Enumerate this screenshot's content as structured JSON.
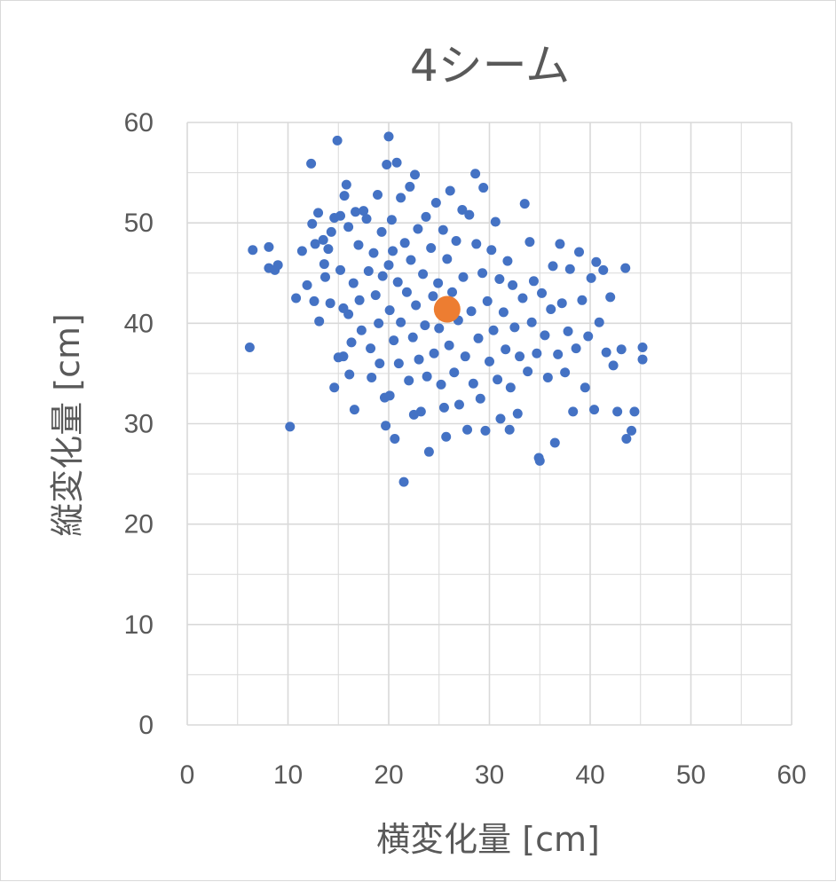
{
  "chart_data": {
    "type": "scatter",
    "title": "4シーム",
    "xlabel": "横変化量 [cm]",
    "ylabel": "縦変化量 [cm]",
    "xlim": [
      0,
      60
    ],
    "ylim": [
      0,
      60
    ],
    "xticks": [
      "0",
      "10",
      "20",
      "30",
      "40",
      "50",
      "60"
    ],
    "yticks": [
      "0",
      "10",
      "20",
      "30",
      "40",
      "50",
      "60"
    ],
    "grid": true,
    "legend": "none",
    "colors": {
      "pitches": "#4472c4",
      "mean": "#ed7d31",
      "grid": "#d9d9d9",
      "text": "#595959"
    },
    "mean": {
      "x": 25.8,
      "y": 41.4
    },
    "series": [
      {
        "points": [
          [
            6.2,
            37.6
          ],
          [
            6.5,
            47.3
          ],
          [
            8.1,
            47.6
          ],
          [
            8.1,
            45.5
          ],
          [
            8.7,
            45.3
          ],
          [
            9.0,
            45.8
          ],
          [
            10.2,
            29.7
          ],
          [
            10.8,
            42.5
          ],
          [
            11.4,
            47.2
          ],
          [
            11.9,
            43.8
          ],
          [
            12.3,
            55.9
          ],
          [
            12.4,
            49.9
          ],
          [
            12.6,
            42.2
          ],
          [
            12.7,
            47.9
          ],
          [
            13.0,
            51.0
          ],
          [
            13.1,
            40.2
          ],
          [
            13.5,
            48.3
          ],
          [
            13.6,
            45.9
          ],
          [
            13.7,
            44.6
          ],
          [
            14.0,
            47.4
          ],
          [
            14.2,
            42.0
          ],
          [
            14.3,
            49.1
          ],
          [
            14.6,
            50.5
          ],
          [
            14.6,
            33.6
          ],
          [
            14.9,
            58.2
          ],
          [
            15.0,
            36.6
          ],
          [
            15.2,
            50.7
          ],
          [
            15.2,
            45.3
          ],
          [
            15.5,
            41.5
          ],
          [
            15.5,
            36.7
          ],
          [
            15.6,
            52.7
          ],
          [
            15.8,
            53.8
          ],
          [
            16.0,
            49.6
          ],
          [
            16.0,
            40.9
          ],
          [
            16.1,
            34.9
          ],
          [
            16.3,
            38.1
          ],
          [
            16.5,
            44.0
          ],
          [
            16.6,
            31.4
          ],
          [
            16.7,
            51.1
          ],
          [
            17.0,
            47.8
          ],
          [
            17.1,
            42.3
          ],
          [
            17.3,
            39.3
          ],
          [
            17.5,
            51.2
          ],
          [
            17.8,
            50.4
          ],
          [
            18.0,
            45.2
          ],
          [
            18.2,
            37.5
          ],
          [
            18.3,
            34.6
          ],
          [
            18.5,
            47.0
          ],
          [
            18.7,
            42.8
          ],
          [
            18.9,
            52.8
          ],
          [
            19.0,
            40.0
          ],
          [
            19.1,
            36.0
          ],
          [
            19.3,
            49.1
          ],
          [
            19.4,
            44.7
          ],
          [
            19.6,
            32.6
          ],
          [
            19.7,
            29.8
          ],
          [
            19.8,
            55.8
          ],
          [
            20.0,
            58.6
          ],
          [
            20.0,
            45.8
          ],
          [
            20.1,
            41.3
          ],
          [
            20.1,
            32.8
          ],
          [
            20.3,
            50.3
          ],
          [
            20.4,
            47.2
          ],
          [
            20.5,
            38.3
          ],
          [
            20.6,
            28.5
          ],
          [
            20.8,
            56.0
          ],
          [
            20.9,
            44.1
          ],
          [
            21.0,
            36.0
          ],
          [
            21.2,
            52.5
          ],
          [
            21.2,
            40.1
          ],
          [
            21.5,
            24.2
          ],
          [
            21.6,
            48.0
          ],
          [
            21.8,
            43.1
          ],
          [
            22.0,
            34.3
          ],
          [
            22.1,
            53.6
          ],
          [
            22.2,
            46.3
          ],
          [
            22.4,
            38.6
          ],
          [
            22.5,
            30.9
          ],
          [
            22.6,
            54.8
          ],
          [
            22.7,
            41.8
          ],
          [
            22.9,
            49.4
          ],
          [
            23.0,
            36.4
          ],
          [
            23.2,
            31.2
          ],
          [
            23.4,
            44.9
          ],
          [
            23.6,
            39.8
          ],
          [
            23.7,
            50.6
          ],
          [
            23.8,
            34.7
          ],
          [
            24.0,
            27.2
          ],
          [
            24.2,
            47.5
          ],
          [
            24.4,
            42.7
          ],
          [
            24.5,
            37.0
          ],
          [
            24.7,
            52.0
          ],
          [
            24.9,
            44.0
          ],
          [
            25.0,
            39.5
          ],
          [
            25.2,
            33.9
          ],
          [
            25.4,
            49.3
          ],
          [
            25.5,
            31.6
          ],
          [
            25.7,
            28.7
          ],
          [
            25.8,
            46.4
          ],
          [
            26.0,
            37.8
          ],
          [
            26.1,
            53.2
          ],
          [
            26.3,
            43.1
          ],
          [
            26.5,
            35.1
          ],
          [
            26.7,
            48.2
          ],
          [
            26.9,
            40.3
          ],
          [
            27.0,
            31.9
          ],
          [
            27.3,
            51.3
          ],
          [
            27.4,
            44.6
          ],
          [
            27.6,
            36.7
          ],
          [
            27.8,
            29.4
          ],
          [
            28.0,
            50.8
          ],
          [
            28.2,
            41.2
          ],
          [
            28.4,
            34.0
          ],
          [
            28.6,
            54.9
          ],
          [
            28.7,
            47.9
          ],
          [
            28.9,
            38.5
          ],
          [
            29.1,
            32.5
          ],
          [
            29.3,
            45.0
          ],
          [
            29.4,
            53.5
          ],
          [
            29.6,
            29.3
          ],
          [
            29.8,
            42.2
          ],
          [
            30.0,
            36.2
          ],
          [
            30.2,
            47.3
          ],
          [
            30.4,
            39.3
          ],
          [
            30.6,
            50.1
          ],
          [
            30.8,
            34.4
          ],
          [
            31.0,
            44.4
          ],
          [
            31.1,
            30.5
          ],
          [
            31.4,
            41.1
          ],
          [
            31.6,
            37.4
          ],
          [
            31.8,
            46.2
          ],
          [
            32.0,
            29.4
          ],
          [
            32.1,
            33.6
          ],
          [
            32.3,
            43.8
          ],
          [
            32.5,
            39.6
          ],
          [
            32.8,
            31.0
          ],
          [
            33.0,
            36.7
          ],
          [
            33.3,
            42.5
          ],
          [
            33.5,
            51.9
          ],
          [
            33.8,
            35.2
          ],
          [
            34.0,
            48.1
          ],
          [
            34.2,
            40.1
          ],
          [
            34.4,
            44.2
          ],
          [
            34.7,
            37.0
          ],
          [
            34.9,
            26.6
          ],
          [
            35.0,
            26.3
          ],
          [
            35.2,
            43.0
          ],
          [
            35.5,
            38.8
          ],
          [
            35.8,
            34.6
          ],
          [
            36.1,
            41.4
          ],
          [
            36.3,
            45.7
          ],
          [
            36.5,
            28.1
          ],
          [
            36.8,
            36.9
          ],
          [
            37.0,
            47.9
          ],
          [
            37.2,
            42.0
          ],
          [
            37.5,
            35.1
          ],
          [
            37.8,
            39.2
          ],
          [
            38.0,
            45.4
          ],
          [
            38.3,
            31.2
          ],
          [
            38.6,
            37.5
          ],
          [
            38.9,
            47.1
          ],
          [
            39.2,
            42.3
          ],
          [
            39.5,
            33.6
          ],
          [
            39.8,
            38.7
          ],
          [
            40.1,
            44.5
          ],
          [
            40.4,
            31.4
          ],
          [
            40.6,
            46.1
          ],
          [
            40.9,
            40.1
          ],
          [
            41.3,
            45.3
          ],
          [
            41.6,
            37.1
          ],
          [
            42.0,
            42.6
          ],
          [
            42.3,
            35.8
          ],
          [
            42.7,
            31.2
          ],
          [
            43.1,
            37.4
          ],
          [
            43.5,
            45.5
          ],
          [
            43.6,
            28.5
          ],
          [
            44.1,
            29.3
          ],
          [
            44.4,
            31.2
          ],
          [
            45.2,
            37.6
          ],
          [
            45.2,
            36.4
          ]
        ]
      }
    ]
  }
}
